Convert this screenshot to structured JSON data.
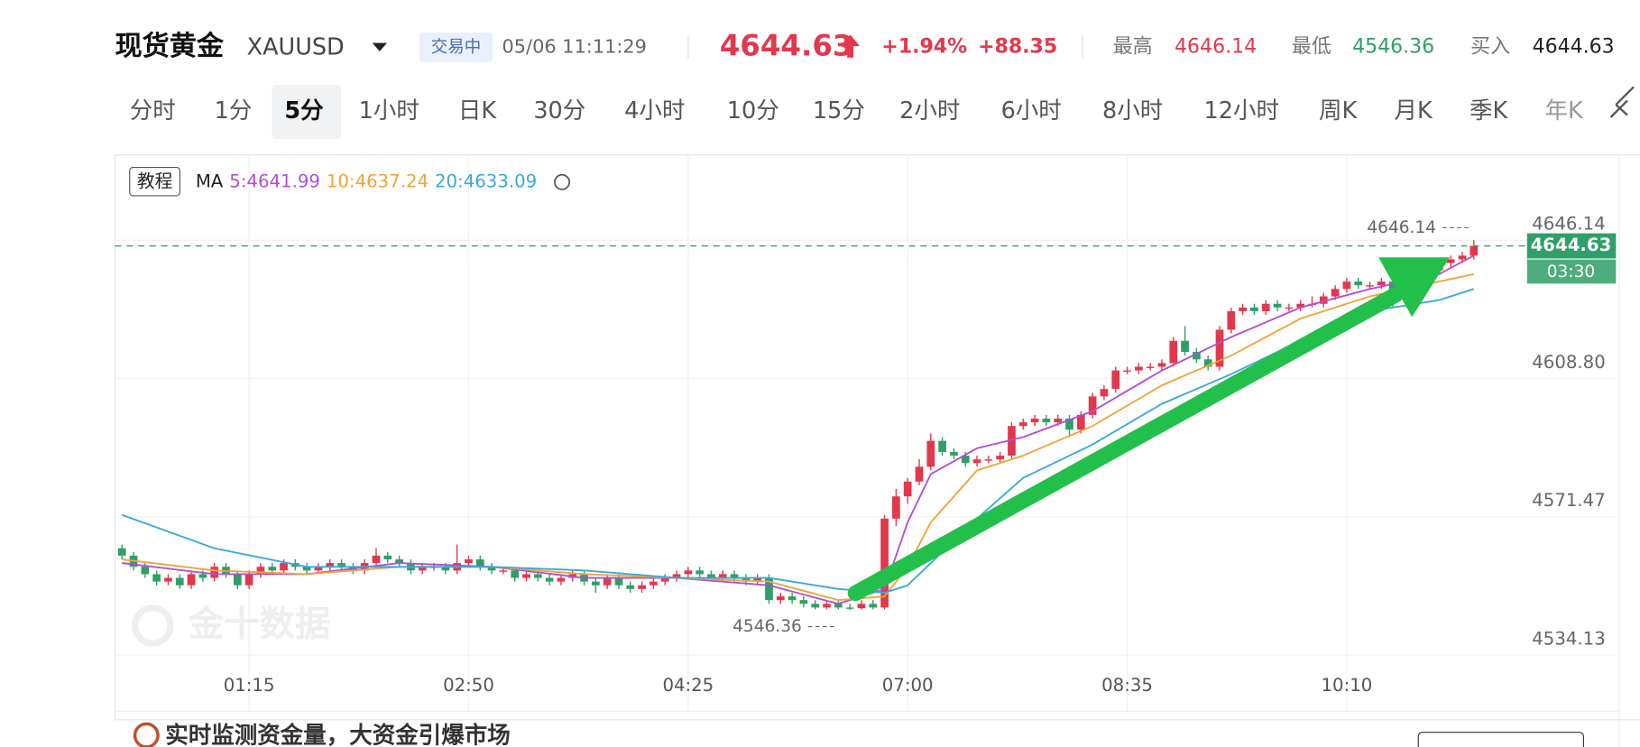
{
  "header": {
    "title": "现货黄金",
    "symbol": "XAUUSD",
    "status": "交易中",
    "time": "05/06 11:11:29",
    "price": "4644.63",
    "change_pct": "+1.94%",
    "change": "+88.35",
    "high_label": "最高",
    "high": "4646.14",
    "low_label": "最低",
    "low": "4546.36",
    "bid_label": "买入",
    "bid": "4644.63"
  },
  "tabs": [
    "分时",
    "1分",
    "5分",
    "1小时",
    "日K",
    "30分",
    "4小时",
    "10分",
    "15分",
    "2小时",
    "6小时",
    "8小时",
    "12小时",
    "周K",
    "月K",
    "季K",
    "年K"
  ],
  "selected_tab": 2,
  "chart_data": {
    "type": "candlestick",
    "tutorial": "教程",
    "ma_title": "MA",
    "watermark": "金十数据",
    "up_color": "#e2384d",
    "down_color": "#2f9f68",
    "xlim": [
      -0.6,
      129.3
    ],
    "ylim": [
      4531.67,
      4669.2
    ],
    "xticks": [
      {
        "value": 11,
        "label": "01:15"
      },
      {
        "value": 30,
        "label": "02:50"
      },
      {
        "value": 49,
        "label": "04:25"
      },
      {
        "value": 68,
        "label": "07:00"
      },
      {
        "value": 87,
        "label": "08:35"
      },
      {
        "value": 106,
        "label": "10:10"
      }
    ],
    "yticks": [
      4646.14,
      {
        "value": 4608.8,
        "label": "4608.80"
      },
      4571.47,
      4534.13
    ],
    "grid": true,
    "last_price": 4644.63,
    "countdown": "03:30",
    "high_marker": 4646.14,
    "low_marker": 4546.36,
    "candles": [
      [
        4563,
        4564,
        4560,
        4561
      ],
      [
        4561,
        4562,
        4557,
        4558
      ],
      [
        4558,
        4559,
        4555,
        4556
      ],
      [
        4556,
        4557,
        4553,
        4554
      ],
      [
        4554,
        4556,
        4553,
        4555
      ],
      [
        4555,
        4556,
        4552,
        4553
      ],
      [
        4553,
        4557,
        4552,
        4556
      ],
      [
        4556,
        4557,
        4554,
        4555
      ],
      [
        4555,
        4559,
        4554,
        4558
      ],
      [
        4558,
        4559,
        4555,
        4556
      ],
      [
        4556,
        4557,
        4552,
        4553
      ],
      [
        4553,
        4557,
        4552,
        4556
      ],
      [
        4556,
        4559,
        4555,
        4558
      ],
      [
        4558,
        4559,
        4556,
        4557
      ],
      [
        4557,
        4560,
        4556,
        4559
      ],
      [
        4559,
        4560,
        4557,
        4558
      ],
      [
        4558,
        4559,
        4556,
        4557
      ],
      [
        4557,
        4559,
        4556,
        4558
      ],
      [
        4558,
        4560,
        4557,
        4559
      ],
      [
        4559,
        4560,
        4557,
        4558
      ],
      [
        4558,
        4559,
        4556,
        4557
      ],
      [
        4557,
        4560,
        4556,
        4559
      ],
      [
        4559,
        4563,
        4558,
        4561
      ],
      [
        4561,
        4562,
        4559,
        4560
      ],
      [
        4560,
        4561,
        4558,
        4559
      ],
      [
        4559,
        4560,
        4556,
        4557
      ],
      [
        4557,
        4559,
        4556,
        4558
      ],
      [
        4558,
        4559,
        4557,
        4558
      ],
      [
        4558,
        4559,
        4556,
        4557
      ],
      [
        4557,
        4564,
        4556,
        4559
      ],
      [
        4559,
        4561,
        4558,
        4560
      ],
      [
        4560,
        4561,
        4557,
        4558
      ],
      [
        4558,
        4559,
        4556,
        4557
      ],
      [
        4557,
        4558,
        4556,
        4557
      ],
      [
        4557,
        4558,
        4554,
        4555
      ],
      [
        4555,
        4557,
        4554,
        4556
      ],
      [
        4556,
        4557,
        4554,
        4555
      ],
      [
        4555,
        4556,
        4553,
        4554
      ],
      [
        4554,
        4556,
        4553,
        4555
      ],
      [
        4555,
        4557,
        4554,
        4556
      ],
      [
        4556,
        4557,
        4553,
        4554
      ],
      [
        4554,
        4555,
        4551,
        4553
      ],
      [
        4553,
        4556,
        4552,
        4555
      ],
      [
        4555,
        4556,
        4552,
        4553
      ],
      [
        4553,
        4554,
        4551,
        4552
      ],
      [
        4552,
        4554,
        4551,
        4553
      ],
      [
        4553,
        4555,
        4552,
        4554
      ],
      [
        4554,
        4556,
        4553,
        4555
      ],
      [
        4555,
        4557,
        4554,
        4556
      ],
      [
        4556,
        4558,
        4555,
        4557
      ],
      [
        4557,
        4558,
        4555,
        4556
      ],
      [
        4556,
        4557,
        4554,
        4555
      ],
      [
        4555,
        4557,
        4554,
        4556
      ],
      [
        4556,
        4557,
        4554,
        4555
      ],
      [
        4555,
        4556,
        4553,
        4554
      ],
      [
        4554,
        4556,
        4553,
        4555
      ],
      [
        4555,
        4556,
        4548,
        4549
      ],
      [
        4549,
        4551,
        4548,
        4550
      ],
      [
        4550,
        4551,
        4548,
        4549
      ],
      [
        4549,
        4550,
        4547,
        4548
      ],
      [
        4548,
        4549,
        4546.5,
        4547
      ],
      [
        4547,
        4549,
        4546.5,
        4548
      ],
      [
        4548,
        4549,
        4546.5,
        4547
      ],
      [
        4547,
        4548,
        4546.36,
        4546.8
      ],
      [
        4546.8,
        4549,
        4546.5,
        4548
      ],
      [
        4548,
        4549,
        4546.5,
        4547
      ],
      [
        4547,
        4572,
        4546.5,
        4571
      ],
      [
        4571,
        4579,
        4569,
        4577
      ],
      [
        4577,
        4582,
        4575,
        4581
      ],
      [
        4581,
        4587,
        4580,
        4585
      ],
      [
        4585,
        4594,
        4584,
        4592
      ],
      [
        4592,
        4593,
        4588,
        4589
      ],
      [
        4589,
        4590,
        4587,
        4588
      ],
      [
        4588,
        4589,
        4585,
        4586
      ],
      [
        4586,
        4588,
        4585,
        4587
      ],
      [
        4587,
        4588,
        4586,
        4587
      ],
      [
        4587,
        4589,
        4586,
        4588
      ],
      [
        4588,
        4597,
        4587,
        4596
      ],
      [
        4596,
        4598,
        4595,
        4597
      ],
      [
        4597,
        4599,
        4596,
        4598
      ],
      [
        4598,
        4599,
        4596,
        4597
      ],
      [
        4597,
        4599,
        4596,
        4598
      ],
      [
        4598,
        4599,
        4593,
        4595
      ],
      [
        4595,
        4600,
        4594,
        4599
      ],
      [
        4599,
        4605,
        4598,
        4604
      ],
      [
        4604,
        4607,
        4603,
        4606
      ],
      [
        4606,
        4612,
        4605,
        4611
      ],
      [
        4611,
        4612,
        4610,
        4611
      ],
      [
        4611,
        4613,
        4610,
        4612
      ],
      [
        4612,
        4613,
        4611,
        4612
      ],
      [
        4612,
        4614,
        4611,
        4613
      ],
      [
        4613,
        4620,
        4612,
        4619
      ],
      [
        4619,
        4623,
        4615,
        4616
      ],
      [
        4616,
        4617,
        4613,
        4614
      ],
      [
        4614,
        4615,
        4611,
        4612
      ],
      [
        4612,
        4623,
        4611,
        4622
      ],
      [
        4622,
        4628,
        4621,
        4627
      ],
      [
        4627,
        4629,
        4626,
        4628
      ],
      [
        4628,
        4629,
        4626,
        4627
      ],
      [
        4627,
        4630,
        4626,
        4629
      ],
      [
        4629,
        4630,
        4627,
        4628
      ],
      [
        4628,
        4629,
        4627,
        4628
      ],
      [
        4628,
        4630,
        4627,
        4629
      ],
      [
        4629,
        4631,
        4628,
        4629
      ],
      [
        4629,
        4632,
        4628,
        4631
      ],
      [
        4631,
        4634,
        4630,
        4633
      ],
      [
        4633,
        4636,
        4632,
        4635
      ],
      [
        4635,
        4636,
        4633,
        4634
      ],
      [
        4634,
        4635,
        4633,
        4634
      ],
      [
        4634,
        4636,
        4633,
        4635
      ],
      [
        4635,
        4636,
        4628,
        4632
      ],
      [
        4632,
        4638,
        4631,
        4637
      ],
      [
        4637,
        4638,
        4636,
        4637
      ],
      [
        4637,
        4639,
        4636,
        4638
      ],
      [
        4638,
        4641,
        4637,
        4640
      ],
      [
        4640,
        4642,
        4639,
        4641
      ],
      [
        4641,
        4643,
        4640,
        4642
      ],
      [
        4642,
        4646.14,
        4641,
        4644.63
      ]
    ],
    "ma_series": [
      {
        "name": "5:4641.99",
        "color": "#b14fd4",
        "x": [
          0,
          8,
          16,
          24,
          32,
          40,
          48,
          56,
          62,
          66,
          68,
          70,
          74,
          78,
          84,
          90,
          96,
          102,
          108,
          114,
          117
        ],
        "values": [
          4559,
          4556,
          4556,
          4559,
          4558,
          4555,
          4555,
          4553,
          4548,
          4552,
          4570,
          4583,
          4590,
          4593,
          4600,
          4611,
          4620,
          4628,
          4633,
          4637,
          4642
        ]
      },
      {
        "name": "10:4637.24",
        "color": "#f0a43a",
        "x": [
          0,
          8,
          16,
          24,
          32,
          40,
          48,
          56,
          62,
          66,
          68,
          70,
          74,
          78,
          84,
          90,
          96,
          102,
          108,
          114,
          117
        ],
        "values": [
          4560,
          4557,
          4556,
          4558,
          4558,
          4556,
          4555,
          4554,
          4549,
          4550,
          4558,
          4570,
          4584,
          4588,
          4596,
          4607,
          4615,
          4625,
          4631,
          4635,
          4637
        ]
      },
      {
        "name": "20:4633.09",
        "color": "#3aa8d8",
        "x": [
          0,
          8,
          16,
          24,
          32,
          40,
          48,
          56,
          62,
          66,
          68,
          70,
          74,
          78,
          84,
          90,
          96,
          102,
          108,
          114,
          117
        ],
        "values": [
          4572,
          4563,
          4558,
          4558,
          4558,
          4557,
          4555,
          4555,
          4552,
          4551,
          4553,
          4559,
          4571,
          4582,
          4591,
          4602,
          4610,
          4619,
          4627,
          4630,
          4633
        ]
      }
    ]
  },
  "footer": {
    "banner": "实时监测资金量，大资金引爆市场"
  }
}
